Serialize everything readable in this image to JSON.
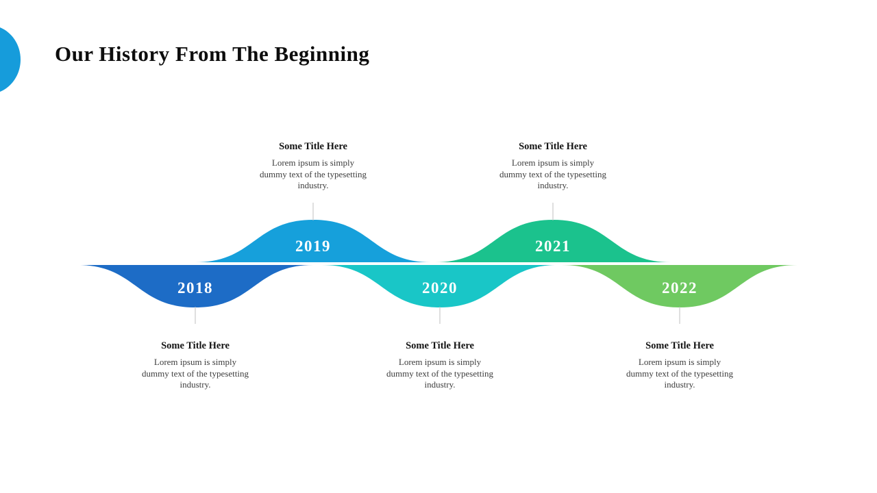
{
  "slide": {
    "title": "Our History From The Beginning",
    "background_color": "#ffffff",
    "corner_accent_color": "#169CDB",
    "connector_color": "#bfbfbf"
  },
  "timeline": {
    "milestones": [
      {
        "year": "2018",
        "direction": "down",
        "color": "#1D6CC6",
        "title": "Some Title Here",
        "description_lines": [
          "Lorem ipsum is simply",
          "dummy text of the typesetting",
          "industry."
        ]
      },
      {
        "year": "2019",
        "direction": "up",
        "color": "#16A0DB",
        "title": "Some Title Here",
        "description_lines": [
          "Lorem ipsum is simply",
          "dummy text of the typesetting",
          "industry."
        ]
      },
      {
        "year": "2020",
        "direction": "down",
        "color": "#19C6C7",
        "title": "Some Title Here",
        "description_lines": [
          "Lorem ipsum is simply",
          "dummy text of the typesetting",
          "industry."
        ]
      },
      {
        "year": "2021",
        "direction": "up",
        "color": "#1BC28D",
        "title": "Some Title Here",
        "description_lines": [
          "Lorem ipsum is simply",
          "dummy text of the typesetting",
          "industry."
        ]
      },
      {
        "year": "2022",
        "direction": "down",
        "color": "#6FC961",
        "title": "Some Title Here",
        "description_lines": [
          "Lorem ipsum is simply",
          "dummy text of the typesetting",
          "industry."
        ]
      }
    ]
  }
}
